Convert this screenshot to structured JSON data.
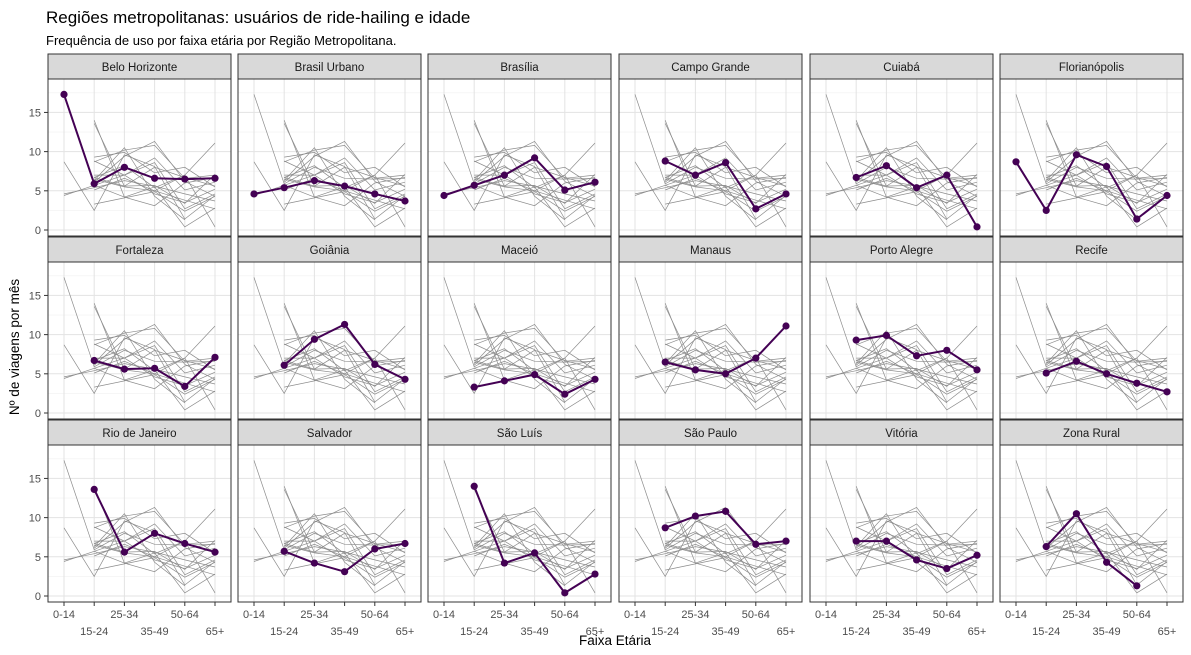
{
  "chart_data": {
    "type": "line",
    "title": "Regiões metropolitanas: usuários de ride-hailing e idade",
    "subtitle": "Frequência de uso por faixa etária por Região Metropolitana.",
    "xlabel": "Faixa Etária",
    "ylabel": "Nº de viagens por mês",
    "categories": [
      "0-14",
      "15-24",
      "25-34",
      "35-49",
      "50-64",
      "65+"
    ],
    "ylim": [
      0,
      18.5
    ],
    "yticks": [
      0,
      5,
      10,
      15
    ],
    "grid": true,
    "highlight_color": "#440154",
    "background_line_color": "#8c8c8c",
    "series": [
      {
        "name": "Belo Horizonte",
        "values": [
          17.3,
          5.9,
          8.0,
          6.6,
          6.5,
          6.6
        ]
      },
      {
        "name": "Brasil Urbano",
        "values": [
          4.6,
          5.4,
          6.3,
          5.6,
          4.6,
          3.7
        ]
      },
      {
        "name": "Brasília",
        "values": [
          4.4,
          5.7,
          7.0,
          9.2,
          5.1,
          6.1
        ]
      },
      {
        "name": "Campo Grande",
        "values": [
          null,
          8.8,
          7.0,
          8.6,
          2.7,
          4.6
        ]
      },
      {
        "name": "Cuiabá",
        "values": [
          null,
          6.7,
          8.2,
          5.4,
          7.0,
          0.4
        ]
      },
      {
        "name": "Florianópolis",
        "values": [
          8.7,
          2.5,
          9.6,
          8.1,
          1.4,
          4.4
        ]
      },
      {
        "name": "Fortaleza",
        "values": [
          null,
          6.7,
          5.6,
          5.7,
          3.4,
          7.1
        ]
      },
      {
        "name": "Goiânia",
        "values": [
          null,
          6.1,
          9.4,
          11.3,
          6.2,
          4.3
        ]
      },
      {
        "name": "Maceió",
        "values": [
          null,
          3.3,
          4.1,
          4.9,
          2.4,
          4.3
        ]
      },
      {
        "name": "Manaus",
        "values": [
          null,
          6.5,
          5.5,
          5.0,
          7.0,
          11.1
        ]
      },
      {
        "name": "Porto Alegre",
        "values": [
          null,
          9.3,
          9.9,
          7.3,
          8.0,
          5.5
        ]
      },
      {
        "name": "Recife",
        "values": [
          null,
          5.1,
          6.6,
          5.0,
          3.8,
          2.7
        ]
      },
      {
        "name": "Rio de Janeiro",
        "values": [
          null,
          13.6,
          5.6,
          8.0,
          6.7,
          5.6
        ]
      },
      {
        "name": "Salvador",
        "values": [
          null,
          5.7,
          4.2,
          3.1,
          6.0,
          6.7
        ]
      },
      {
        "name": "São Luís",
        "values": [
          null,
          14.0,
          4.2,
          5.5,
          0.4,
          2.8
        ]
      },
      {
        "name": "São Paulo",
        "values": [
          null,
          8.7,
          10.2,
          10.8,
          6.6,
          7.0
        ]
      },
      {
        "name": "Vitória",
        "values": [
          null,
          7.0,
          7.0,
          4.6,
          3.5,
          5.2
        ]
      },
      {
        "name": "Zona Rural",
        "values": [
          null,
          6.3,
          10.5,
          4.3,
          1.3,
          null
        ]
      }
    ]
  }
}
